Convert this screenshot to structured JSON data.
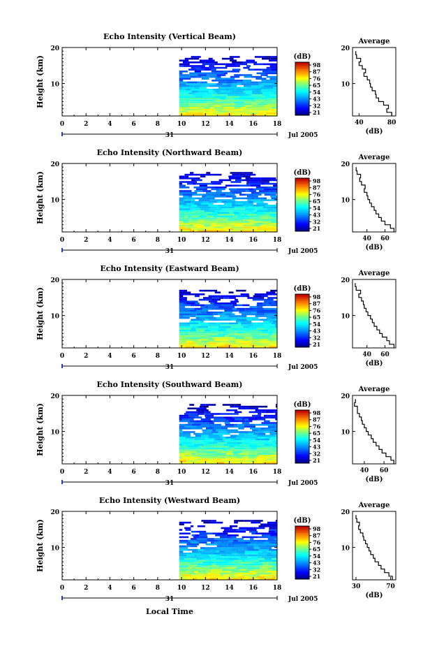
{
  "figure": {
    "xlabel": "Local Time",
    "date_suffix": "Jul 2005",
    "day_label": "31"
  },
  "chart_data": [
    {
      "type": "heatmap",
      "title": "Echo Intensity (Vertical Beam)",
      "ylabel": "Height (km)",
      "xlim": [
        0,
        18
      ],
      "ylim": [
        1,
        20
      ],
      "xticks": [
        "0",
        "2",
        "4",
        "6",
        "8",
        "10",
        "12",
        "14",
        "16",
        "18"
      ],
      "yticks": [
        "10",
        "20"
      ],
      "data_start_hour": 9.8,
      "data_end_hour": 18.0,
      "data_top_km": 18.0,
      "colorbar": {
        "label": "(dB)",
        "ticks": [
          "98",
          "87",
          "76",
          "65",
          "54",
          "43",
          "32",
          "21"
        ]
      },
      "profile": {
        "title": "Average",
        "xlabel": "(dB)",
        "xlim": [
          32,
          85
        ],
        "xticks": [
          "40",
          "80"
        ],
        "height_km": [
          1,
          2,
          3,
          4,
          5,
          6,
          7,
          8,
          9,
          10,
          11,
          12,
          13,
          14,
          15,
          16,
          17,
          18
        ],
        "values_db": [
          80,
          74,
          76,
          70,
          64,
          61,
          60,
          56,
          54,
          53,
          50,
          46,
          48,
          44,
          40,
          42,
          37,
          36
        ]
      }
    },
    {
      "type": "heatmap",
      "title": "Echo Intensity (Northward Beam)",
      "ylabel": "Height (km)",
      "xlim": [
        0,
        18
      ],
      "ylim": [
        1,
        20
      ],
      "xticks": [
        "0",
        "2",
        "4",
        "6",
        "8",
        "10",
        "12",
        "14",
        "16",
        "18"
      ],
      "yticks": [
        "10",
        "20"
      ],
      "data_start_hour": 9.8,
      "data_end_hour": 18.0,
      "data_top_km": 18.0,
      "colorbar": {
        "label": "(dB)",
        "ticks": [
          "98",
          "87",
          "76",
          "65",
          "54",
          "43",
          "32",
          "21"
        ]
      },
      "profile": {
        "title": "Average",
        "xlabel": "(dB)",
        "xlim": [
          24,
          72
        ],
        "xticks": [
          "40",
          "60"
        ],
        "height_km": [
          1,
          2,
          3,
          4,
          5,
          6,
          7,
          8,
          9,
          10,
          11,
          12,
          13,
          14,
          15,
          16,
          17,
          18
        ],
        "values_db": [
          70,
          66,
          60,
          56,
          53,
          50,
          48,
          45,
          43,
          41,
          40,
          37,
          38,
          34,
          32,
          33,
          29,
          28
        ]
      }
    },
    {
      "type": "heatmap",
      "title": "Echo Intensity (Eastward Beam)",
      "ylabel": "Height (km)",
      "xlim": [
        0,
        18
      ],
      "ylim": [
        1,
        20
      ],
      "xticks": [
        "0",
        "2",
        "4",
        "6",
        "8",
        "10",
        "12",
        "14",
        "16",
        "18"
      ],
      "yticks": [
        "10",
        "20"
      ],
      "data_start_hour": 9.8,
      "data_end_hour": 18.0,
      "data_top_km": 17.5,
      "colorbar": {
        "label": "(dB)",
        "ticks": [
          "98",
          "87",
          "76",
          "65",
          "54",
          "43",
          "32",
          "21"
        ]
      },
      "profile": {
        "title": "Average",
        "xlabel": "(dB)",
        "xlim": [
          24,
          72
        ],
        "xticks": [
          "40",
          "60"
        ],
        "height_km": [
          1,
          2,
          3,
          4,
          5,
          6,
          7,
          8,
          9,
          10,
          11,
          12,
          13,
          14,
          15,
          16,
          17,
          18
        ],
        "values_db": [
          70,
          65,
          62,
          57,
          54,
          51,
          48,
          46,
          44,
          41,
          39,
          37,
          36,
          34,
          31,
          33,
          28,
          27
        ]
      }
    },
    {
      "type": "heatmap",
      "title": "Echo Intensity (Southward Beam)",
      "ylabel": "Height (km)",
      "xlim": [
        0,
        18
      ],
      "ylim": [
        1,
        20
      ],
      "xticks": [
        "0",
        "2",
        "4",
        "6",
        "8",
        "10",
        "12",
        "14",
        "16",
        "18"
      ],
      "yticks": [
        "10",
        "20"
      ],
      "data_start_hour": 9.8,
      "data_end_hour": 18.0,
      "data_top_km": 18.0,
      "colorbar": {
        "label": "(dB)",
        "ticks": [
          "98",
          "87",
          "76",
          "65",
          "54",
          "43",
          "32",
          "21"
        ]
      },
      "profile": {
        "title": "Average",
        "xlabel": "(dB)",
        "xlim": [
          28,
          72
        ],
        "xticks": [
          "40",
          "60"
        ],
        "height_km": [
          1,
          2,
          3,
          4,
          5,
          6,
          7,
          8,
          9,
          10,
          11,
          12,
          13,
          14,
          15,
          16,
          17,
          18
        ],
        "values_db": [
          70,
          67,
          62,
          58,
          55,
          52,
          49,
          47,
          44,
          42,
          40,
          38,
          37,
          35,
          33,
          33,
          30,
          31
        ]
      }
    },
    {
      "type": "heatmap",
      "title": "Echo Intensity (Westward Beam)",
      "ylabel": "Height (km)",
      "xlim": [
        0,
        18
      ],
      "ylim": [
        1,
        20
      ],
      "xticks": [
        "0",
        "2",
        "4",
        "6",
        "8",
        "10",
        "12",
        "14",
        "16",
        "18"
      ],
      "yticks": [
        "10",
        "20"
      ],
      "data_start_hour": 9.8,
      "data_end_hour": 18.0,
      "data_top_km": 18.0,
      "colorbar": {
        "label": "(dB)",
        "ticks": [
          "98",
          "87",
          "76",
          "65",
          "54",
          "43",
          "32",
          "21"
        ]
      },
      "profile": {
        "title": "Average",
        "xlabel": "(dB)",
        "xlim": [
          26,
          76
        ],
        "xticks": [
          "30",
          "70"
        ],
        "height_km": [
          1,
          2,
          3,
          4,
          5,
          6,
          7,
          8,
          9,
          10,
          11,
          12,
          13,
          14,
          15,
          16,
          17,
          18
        ],
        "values_db": [
          72,
          68,
          63,
          59,
          56,
          52,
          50,
          47,
          45,
          43,
          41,
          39,
          38,
          35,
          33,
          34,
          31,
          30
        ]
      }
    }
  ]
}
